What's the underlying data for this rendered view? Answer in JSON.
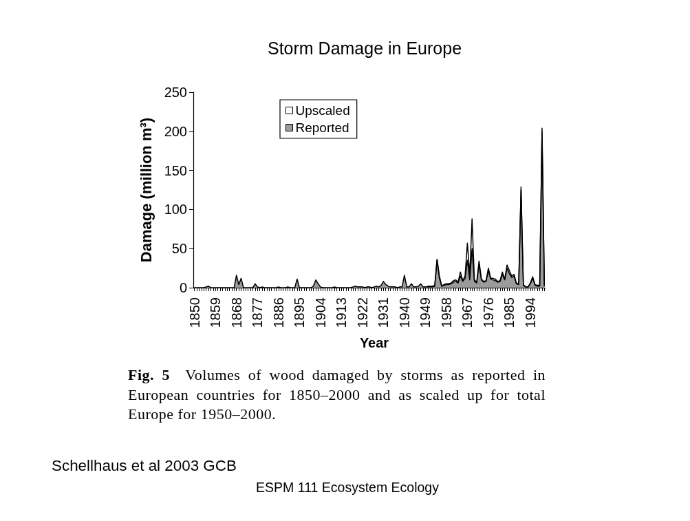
{
  "chart_data": {
    "type": "area",
    "title": "Storm Damage in Europe",
    "xlabel": "Year",
    "ylabel": "Damage (million m³)",
    "annotations": [
      "Fig. 5  Volumes of wood damaged by storms as reported in European countries for 1850–2000 and as scaled up for total Europe for 1950–2000.",
      "Schellhaus et al 2003 GCB",
      "ESPM 111 Ecosystem Ecology"
    ],
    "categories": [
      "1850",
      null,
      null,
      null,
      null,
      null,
      null,
      null,
      null,
      "1859",
      null,
      null,
      null,
      null,
      null,
      null,
      null,
      null,
      "1868",
      null,
      null,
      null,
      null,
      null,
      null,
      null,
      null,
      "1877",
      null,
      null,
      null,
      null,
      null,
      null,
      null,
      null,
      "1886",
      null,
      null,
      null,
      null,
      null,
      null,
      null,
      null,
      "1895",
      null,
      null,
      null,
      null,
      null,
      null,
      null,
      null,
      "1904",
      null,
      null,
      null,
      null,
      null,
      null,
      null,
      null,
      "1913",
      null,
      null,
      null,
      null,
      null,
      null,
      null,
      null,
      "1922",
      null,
      null,
      null,
      null,
      null,
      null,
      null,
      null,
      "1931",
      null,
      null,
      null,
      null,
      null,
      null,
      null,
      null,
      "1940",
      null,
      null,
      null,
      null,
      null,
      null,
      null,
      null,
      "1949",
      null,
      null,
      null,
      null,
      null,
      null,
      null,
      null,
      "1958",
      null,
      null,
      null,
      null,
      null,
      null,
      null,
      null,
      "1967",
      null,
      null,
      null,
      null,
      null,
      null,
      null,
      null,
      "1976",
      null,
      null,
      null,
      null,
      null,
      null,
      null,
      null,
      "1985",
      null,
      null,
      null,
      null,
      null,
      null,
      null,
      null,
      "1994",
      null,
      null,
      null,
      null,
      null,
      null
    ],
    "series": [
      {
        "name": "Upscaled",
        "color": "#ffffff",
        "values": [
          null,
          null,
          null,
          null,
          null,
          null,
          null,
          null,
          null,
          null,
          null,
          null,
          null,
          null,
          null,
          null,
          null,
          null,
          null,
          null,
          null,
          null,
          null,
          null,
          null,
          null,
          null,
          null,
          null,
          null,
          null,
          null,
          null,
          null,
          null,
          null,
          null,
          null,
          null,
          null,
          null,
          null,
          null,
          null,
          null,
          null,
          null,
          null,
          null,
          null,
          null,
          null,
          null,
          null,
          null,
          null,
          null,
          null,
          null,
          null,
          null,
          null,
          null,
          null,
          null,
          null,
          null,
          null,
          null,
          null,
          null,
          null,
          null,
          null,
          null,
          null,
          null,
          null,
          null,
          null,
          null,
          null,
          null,
          null,
          null,
          null,
          null,
          null,
          null,
          null,
          null,
          null,
          null,
          null,
          null,
          null,
          null,
          null,
          null,
          null,
          2,
          2,
          2,
          3,
          36,
          15,
          2,
          4,
          5,
          5,
          6,
          9,
          10,
          7,
          20,
          9,
          15,
          57,
          16,
          88,
          10,
          7,
          34,
          11,
          8,
          9,
          25,
          12,
          12,
          11,
          8,
          9,
          20,
          11,
          29,
          22,
          15,
          17,
          6,
          5,
          129,
          4,
          1,
          1,
          6,
          14,
          4,
          3,
          3,
          204,
          3
        ]
      },
      {
        "name": "Reported",
        "color": "#9b9b9b",
        "values": [
          0,
          0,
          0,
          0,
          0,
          1,
          2,
          0,
          0,
          0,
          0,
          0,
          0,
          0,
          0,
          0,
          0,
          0,
          16,
          4,
          12,
          0,
          0,
          0,
          0,
          0,
          5,
          1,
          0,
          1,
          0,
          0,
          0,
          0,
          0,
          0,
          1,
          0,
          0,
          0,
          1,
          0,
          0,
          0,
          11,
          0,
          0,
          0,
          0,
          0,
          0,
          2,
          10,
          5,
          1,
          0,
          0,
          0,
          0,
          0,
          1,
          0,
          0,
          0,
          0,
          0,
          0,
          0,
          1,
          2,
          1,
          1,
          1,
          0,
          1,
          1,
          0,
          1,
          2,
          1,
          3,
          8,
          4,
          2,
          1,
          1,
          1,
          0,
          1,
          1,
          16,
          1,
          1,
          5,
          1,
          1,
          2,
          5,
          1,
          1,
          1,
          1,
          1,
          2,
          36,
          12,
          2,
          3,
          4,
          4,
          5,
          7,
          8,
          6,
          15,
          8,
          12,
          35,
          10,
          50,
          8,
          6,
          30,
          10,
          7,
          8,
          22,
          11,
          10,
          9,
          7,
          8,
          17,
          10,
          25,
          18,
          13,
          15,
          5,
          4,
          125,
          3,
          1,
          1,
          5,
          12,
          3,
          2,
          2,
          200,
          2
        ]
      }
    ],
    "ylim": [
      0,
      250
    ],
    "yticks": [
      0,
      50,
      100,
      150,
      200,
      250
    ],
    "legend": "top left"
  }
}
